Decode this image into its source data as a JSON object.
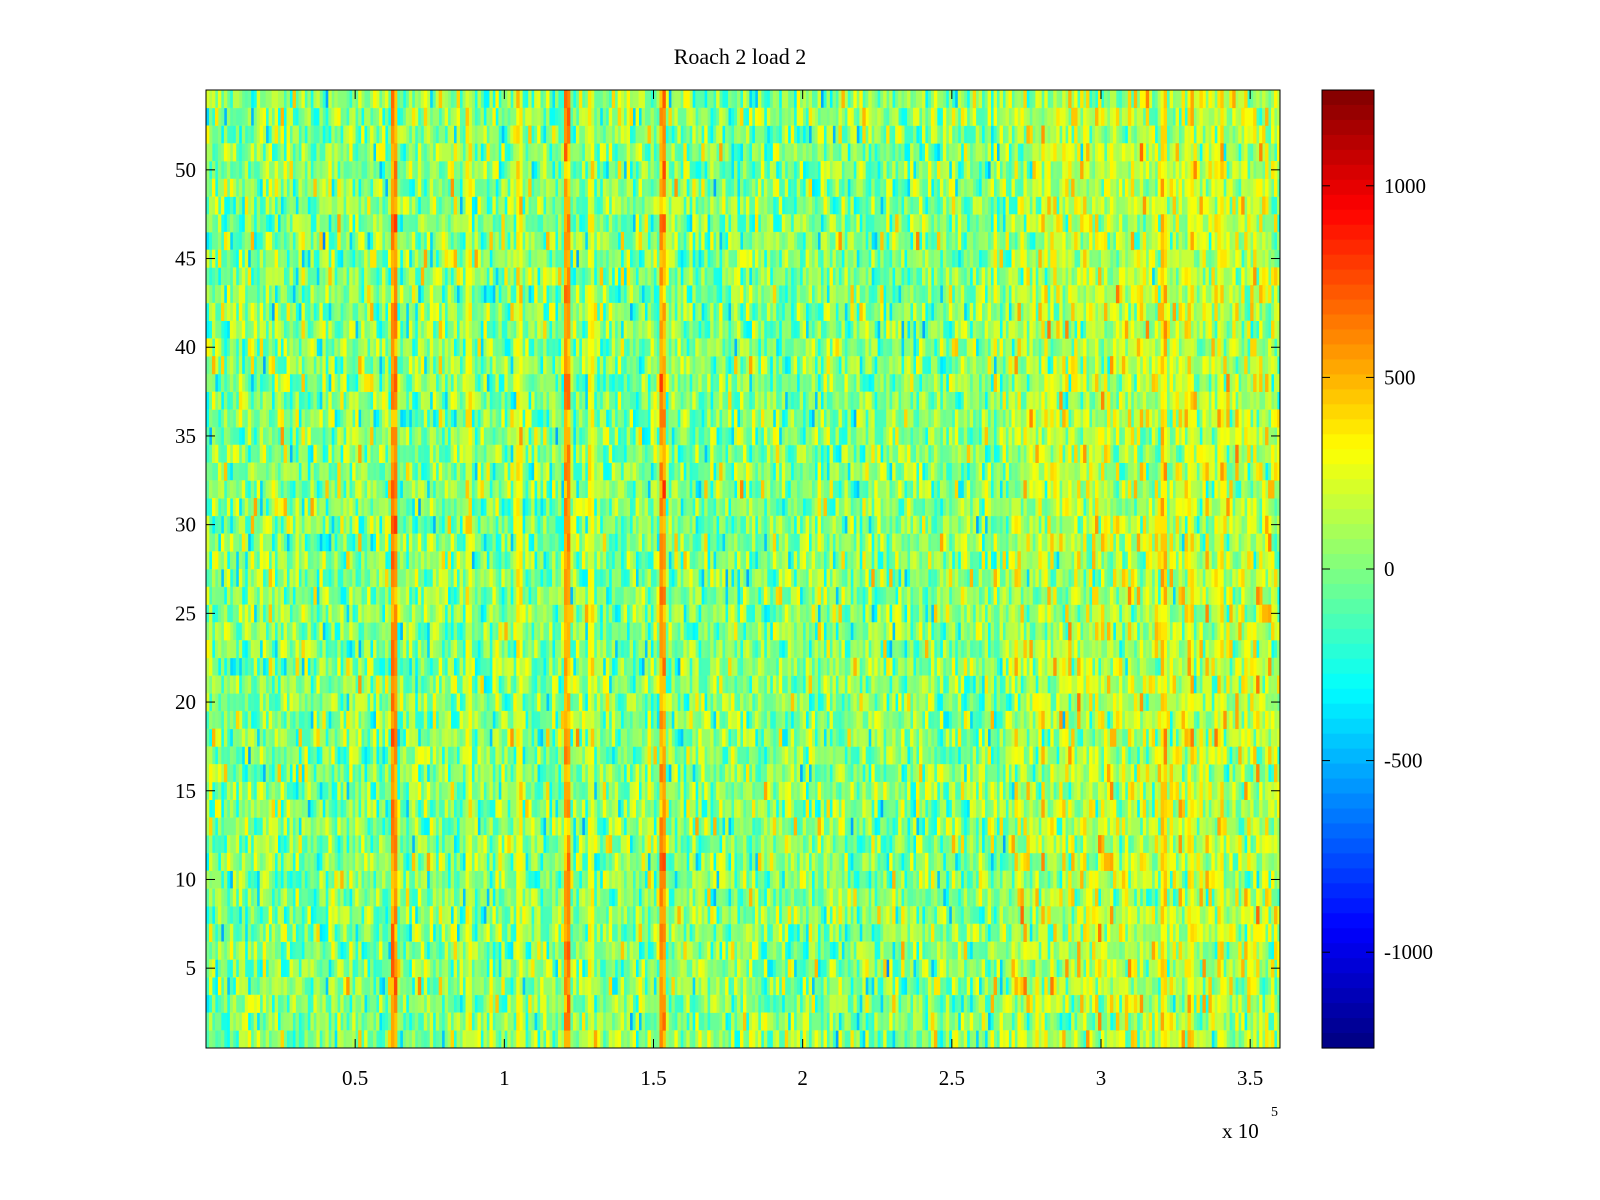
{
  "chart_data": {
    "type": "heatmap",
    "title": "Roach 2 load 2",
    "xlabel": "",
    "ylabel": "",
    "x_exponent_label": "x 10",
    "x_exponent": "5",
    "xlim": [
      0,
      3.6
    ],
    "ylim": [
      0.5,
      54.5
    ],
    "x_ticks": [
      0.5,
      1,
      1.5,
      2,
      2.5,
      3,
      3.5
    ],
    "x_tick_labels": [
      "0.5",
      "1",
      "1.5",
      "2",
      "2.5",
      "3",
      "3.5"
    ],
    "y_ticks": [
      5,
      10,
      15,
      20,
      25,
      30,
      35,
      40,
      45,
      50
    ],
    "y_tick_labels": [
      "5",
      "10",
      "15",
      "20",
      "25",
      "30",
      "35",
      "40",
      "45",
      "50"
    ],
    "rows": 54,
    "columns": 360,
    "colorbar": {
      "colormap": "jet",
      "range": [
        -1250,
        1250
      ],
      "ticks": [
        -1000,
        -500,
        0,
        500,
        1000
      ],
      "tick_labels": [
        "-1000",
        "-500",
        "0",
        "500",
        "1000"
      ]
    },
    "baseline_value": 0,
    "noise_spread": 200,
    "right_region": {
      "x_start": 2.7,
      "x_end": 3.6,
      "mean_shift": 120
    },
    "vertical_stripes": [
      {
        "x": 0.63,
        "value": 1150
      },
      {
        "x": 0.88,
        "value": 500
      },
      {
        "x": 1.05,
        "value": 550
      },
      {
        "x": 1.21,
        "value": 1100
      },
      {
        "x": 1.29,
        "value": 500
      },
      {
        "x": 1.53,
        "value": 1100
      },
      {
        "x": 3.21,
        "value": 750
      },
      {
        "x": 3.3,
        "value": 550
      },
      {
        "x": 3.4,
        "value": 500
      }
    ]
  }
}
